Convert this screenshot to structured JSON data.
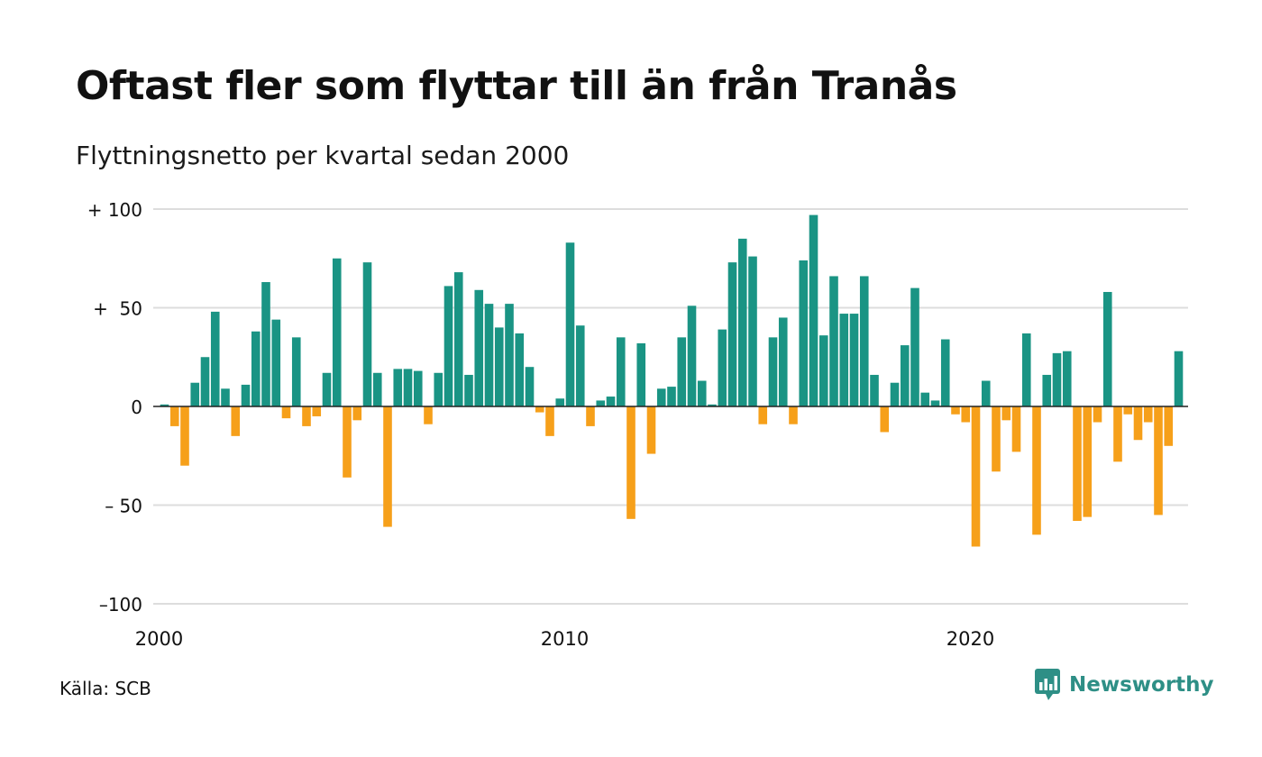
{
  "title": "Oftast fler som flyttar till än från Tranås",
  "subtitle": "Flyttningsnetto per kvartal sedan 2000",
  "source": "Källa: SCB",
  "brand": {
    "name": "Newsworthy",
    "icon": "newsworthy-logo-icon",
    "color": "#2e8f86"
  },
  "colors": {
    "positive": "#1a9484",
    "negative": "#f6a01a",
    "grid": "#dddddd"
  },
  "chart_data": {
    "type": "bar",
    "title": "Oftast fler som flyttar till än från Tranås",
    "subtitle": "Flyttningsnetto per kvartal sedan 2000",
    "xlabel": "",
    "ylabel": "",
    "ylim": [
      -100,
      100
    ],
    "yticks": [
      100,
      50,
      0,
      -50,
      -100
    ],
    "ytick_labels": [
      "+ 100",
      "+  50",
      "0",
      "– 50",
      "–100"
    ],
    "xticks": [
      {
        "label": "2000",
        "index": 0
      },
      {
        "label": "2010",
        "index": 40
      },
      {
        "label": "2020",
        "index": 80
      }
    ],
    "start": "2000 Q1",
    "grid": true,
    "legend": "none",
    "values": [
      1,
      -10,
      -30,
      12,
      25,
      48,
      9,
      -15,
      11,
      38,
      63,
      44,
      -6,
      35,
      -10,
      -5,
      17,
      75,
      -36,
      -7,
      73,
      17,
      -61,
      19,
      19,
      18,
      -9,
      17,
      61,
      68,
      16,
      59,
      52,
      40,
      52,
      37,
      20,
      -3,
      -15,
      4,
      83,
      41,
      -10,
      3,
      5,
      35,
      -57,
      32,
      -24,
      9,
      10,
      35,
      51,
      13,
      1,
      39,
      73,
      85,
      76,
      -9,
      35,
      45,
      -9,
      74,
      97,
      36,
      66,
      47,
      47,
      66,
      16,
      -13,
      12,
      31,
      60,
      7,
      3,
      34,
      -4,
      -8,
      -71,
      13,
      -33,
      -7,
      -23,
      37,
      -65,
      16,
      27,
      28,
      -58,
      -56,
      -8,
      58,
      -28,
      -4,
      -17,
      -8,
      -55,
      -20,
      28
    ]
  }
}
